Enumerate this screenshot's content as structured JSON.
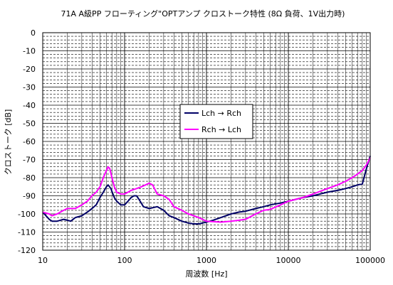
{
  "chart_data": {
    "type": "line",
    "title": "71A A級PP フローティング\"OPTアンプ クロストーク特性 (8Ω 負荷、1V出力時)",
    "xlabel": "周波数 [Hz]",
    "ylabel": "クロストーク [dB]",
    "xscale": "log",
    "xlim": [
      10,
      100000
    ],
    "ylim": [
      -120,
      0
    ],
    "x_ticks": [
      "10",
      "100",
      "1000",
      "10000",
      "100000"
    ],
    "y_ticks": [
      "0",
      "-10",
      "-20",
      "-30",
      "-40",
      "-50",
      "-60",
      "-70",
      "-80",
      "-90",
      "-100",
      "-110",
      "-120"
    ],
    "grid": true,
    "legend_position": "center",
    "series": [
      {
        "name": "Lch → Rch",
        "color": "#000066",
        "points": [
          [
            10,
            -99
          ],
          [
            12,
            -103
          ],
          [
            13,
            -104
          ],
          [
            15,
            -104
          ],
          [
            18,
            -103
          ],
          [
            20,
            -103.5
          ],
          [
            22,
            -104
          ],
          [
            25,
            -102
          ],
          [
            30,
            -101
          ],
          [
            35,
            -99
          ],
          [
            40,
            -97
          ],
          [
            45,
            -95
          ],
          [
            50,
            -91
          ],
          [
            55,
            -88
          ],
          [
            60,
            -85
          ],
          [
            63,
            -84
          ],
          [
            68,
            -86
          ],
          [
            75,
            -91
          ],
          [
            80,
            -93
          ],
          [
            90,
            -95
          ],
          [
            100,
            -95
          ],
          [
            110,
            -93
          ],
          [
            120,
            -91
          ],
          [
            130,
            -90
          ],
          [
            140,
            -90
          ],
          [
            150,
            -92
          ],
          [
            170,
            -96
          ],
          [
            200,
            -97
          ],
          [
            250,
            -96
          ],
          [
            300,
            -98
          ],
          [
            350,
            -101
          ],
          [
            400,
            -102
          ],
          [
            500,
            -104
          ],
          [
            600,
            -105
          ],
          [
            700,
            -105.5
          ],
          [
            800,
            -105.5
          ],
          [
            1000,
            -104.5
          ],
          [
            1200,
            -103.5
          ],
          [
            1500,
            -102
          ],
          [
            2000,
            -100
          ],
          [
            2500,
            -99
          ],
          [
            3000,
            -98.5
          ],
          [
            4000,
            -97
          ],
          [
            5000,
            -96
          ],
          [
            6000,
            -95
          ],
          [
            8000,
            -94
          ],
          [
            10000,
            -93
          ],
          [
            15000,
            -91
          ],
          [
            20000,
            -90
          ],
          [
            30000,
            -88
          ],
          [
            40000,
            -87
          ],
          [
            50000,
            -86
          ],
          [
            60000,
            -85
          ],
          [
            70000,
            -84
          ],
          [
            80000,
            -83.5
          ],
          [
            90000,
            -75
          ],
          [
            100000,
            -68
          ]
        ]
      },
      {
        "name": "Rch → Lch",
        "color": "#ff00ff",
        "points": [
          [
            10,
            -99
          ],
          [
            12,
            -100
          ],
          [
            13,
            -101
          ],
          [
            15,
            -100
          ],
          [
            18,
            -98
          ],
          [
            20,
            -97
          ],
          [
            25,
            -97
          ],
          [
            30,
            -95
          ],
          [
            35,
            -93
          ],
          [
            40,
            -90
          ],
          [
            45,
            -88
          ],
          [
            50,
            -85
          ],
          [
            55,
            -80
          ],
          [
            60,
            -76
          ],
          [
            63,
            -74
          ],
          [
            66,
            -75
          ],
          [
            70,
            -80
          ],
          [
            75,
            -85
          ],
          [
            80,
            -88
          ],
          [
            90,
            -89
          ],
          [
            100,
            -89
          ],
          [
            110,
            -88
          ],
          [
            120,
            -87
          ],
          [
            140,
            -86
          ],
          [
            160,
            -85
          ],
          [
            180,
            -84
          ],
          [
            200,
            -83
          ],
          [
            220,
            -84
          ],
          [
            250,
            -89
          ],
          [
            300,
            -90
          ],
          [
            350,
            -92
          ],
          [
            400,
            -96
          ],
          [
            500,
            -98
          ],
          [
            600,
            -100
          ],
          [
            700,
            -101
          ],
          [
            800,
            -102
          ],
          [
            1000,
            -104
          ],
          [
            1500,
            -104.5
          ],
          [
            2000,
            -104
          ],
          [
            2500,
            -103.5
          ],
          [
            3000,
            -103
          ],
          [
            4000,
            -100
          ],
          [
            5000,
            -98
          ],
          [
            6000,
            -97.5
          ],
          [
            8000,
            -95
          ],
          [
            10000,
            -93
          ],
          [
            15000,
            -91
          ],
          [
            20000,
            -89
          ],
          [
            30000,
            -86
          ],
          [
            40000,
            -84
          ],
          [
            50000,
            -82
          ],
          [
            60000,
            -80
          ],
          [
            70000,
            -78
          ],
          [
            80000,
            -76
          ],
          [
            90000,
            -73
          ],
          [
            100000,
            -69
          ]
        ]
      }
    ]
  }
}
